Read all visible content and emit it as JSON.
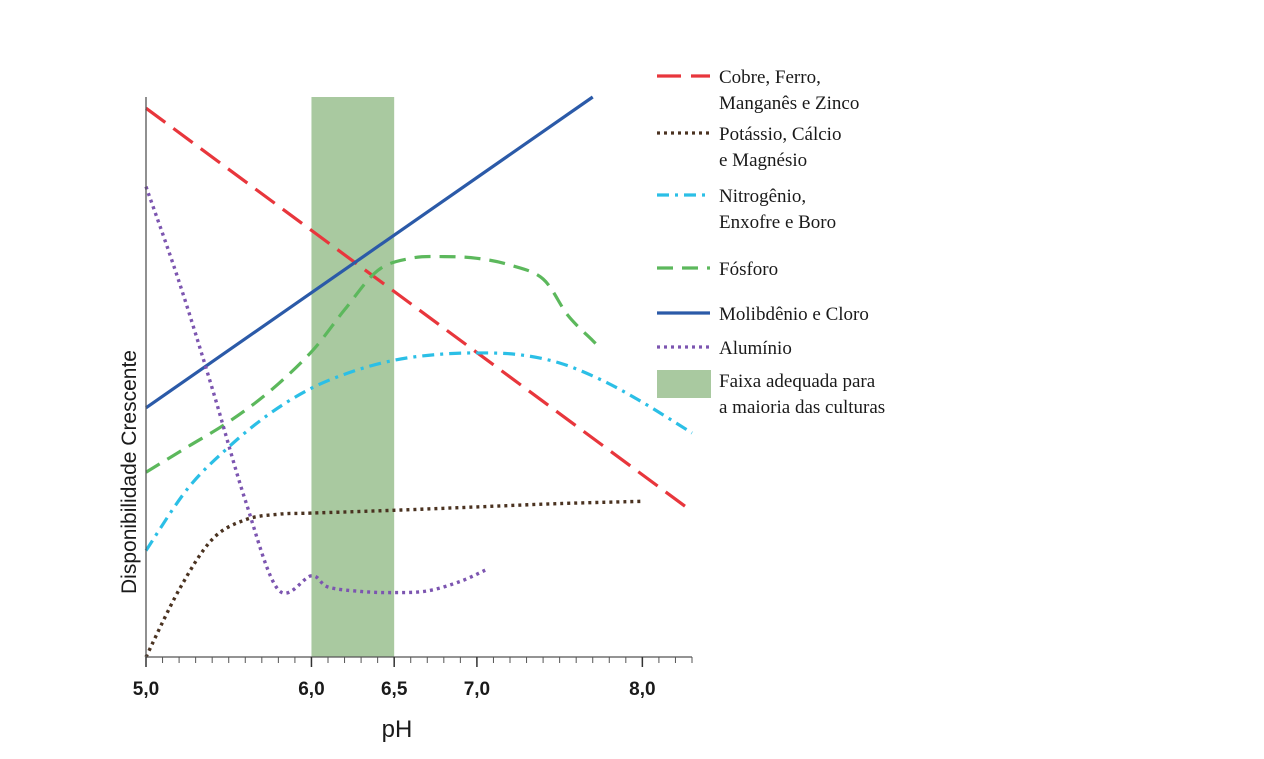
{
  "chart_data": {
    "type": "line",
    "xlabel": "pH",
    "ylabel": "Disponibilidade Crescente",
    "x_ticks": [
      "5,0",
      "6,0",
      "6,5",
      "7,0",
      "8,0"
    ],
    "x_tick_values": [
      5.0,
      6.0,
      6.5,
      7.0,
      8.0
    ],
    "xlim": [
      5.0,
      8.3
    ],
    "ylim": [
      0,
      100
    ],
    "grid": false,
    "legend_position": "right",
    "band": {
      "from": 6.0,
      "to": 6.5,
      "color": "#a9c9a0",
      "label_lines": [
        "Faixa adequada para",
        "a maioria das culturas"
      ]
    },
    "series": [
      {
        "label_lines": [
          "Cobre, Ferro,",
          "Manganês e Zinco"
        ],
        "color": "#e8363c",
        "style": "long-dash",
        "points": [
          [
            5.0,
            98
          ],
          [
            8.3,
            26
          ]
        ]
      },
      {
        "label_lines": [
          "Potássio, Cálcio",
          "e Magnésio"
        ],
        "color": "#4a3220",
        "style": "dotted",
        "points": [
          [
            5.0,
            0
          ],
          [
            5.2,
            12
          ],
          [
            5.4,
            21
          ],
          [
            5.6,
            24.5
          ],
          [
            5.8,
            25.5
          ],
          [
            6.0,
            25.7
          ],
          [
            6.5,
            26.2
          ],
          [
            7.0,
            26.8
          ],
          [
            7.5,
            27.4
          ],
          [
            8.0,
            27.8
          ]
        ]
      },
      {
        "label_lines": [
          "Nitrogênio,",
          "Enxofre e Boro"
        ],
        "color": "#2bbfe6",
        "style": "dash-dot",
        "points": [
          [
            5.0,
            19
          ],
          [
            5.25,
            30
          ],
          [
            5.5,
            37.5
          ],
          [
            5.75,
            43.5
          ],
          [
            6.0,
            48
          ],
          [
            6.25,
            51
          ],
          [
            6.5,
            53
          ],
          [
            6.75,
            54
          ],
          [
            7.0,
            54.3
          ],
          [
            7.25,
            54
          ],
          [
            7.5,
            52.5
          ],
          [
            7.75,
            49.5
          ],
          [
            8.0,
            45.5
          ],
          [
            8.3,
            40
          ]
        ]
      },
      {
        "label_lines": [
          "Fósforo"
        ],
        "color": "#5cb85c",
        "style": "dash",
        "points": [
          [
            5.0,
            33
          ],
          [
            5.25,
            37.5
          ],
          [
            5.5,
            42
          ],
          [
            5.75,
            47.5
          ],
          [
            6.0,
            54.5
          ],
          [
            6.2,
            62
          ],
          [
            6.4,
            69
          ],
          [
            6.6,
            71.2
          ],
          [
            6.8,
            71.5
          ],
          [
            7.0,
            71.2
          ],
          [
            7.2,
            70
          ],
          [
            7.4,
            67.5
          ],
          [
            7.55,
            61
          ],
          [
            7.7,
            56.5
          ],
          [
            7.75,
            55
          ]
        ]
      },
      {
        "label_lines": [
          "Molibdênio e Cloro"
        ],
        "color": "#2b5aa8",
        "style": "solid",
        "points": [
          [
            5.0,
            44.5
          ],
          [
            7.7,
            100
          ]
        ]
      },
      {
        "label_lines": [
          "Alumínio"
        ],
        "color": "#7c55b0",
        "style": "dotted",
        "points": [
          [
            5.0,
            84
          ],
          [
            5.2,
            67
          ],
          [
            5.4,
            48
          ],
          [
            5.6,
            28
          ],
          [
            5.8,
            12
          ],
          [
            6.0,
            14.5
          ],
          [
            6.1,
            12.5
          ],
          [
            6.3,
            11.7
          ],
          [
            6.5,
            11.5
          ],
          [
            6.7,
            11.8
          ],
          [
            6.9,
            13.5
          ],
          [
            7.05,
            15.5
          ]
        ]
      }
    ]
  }
}
